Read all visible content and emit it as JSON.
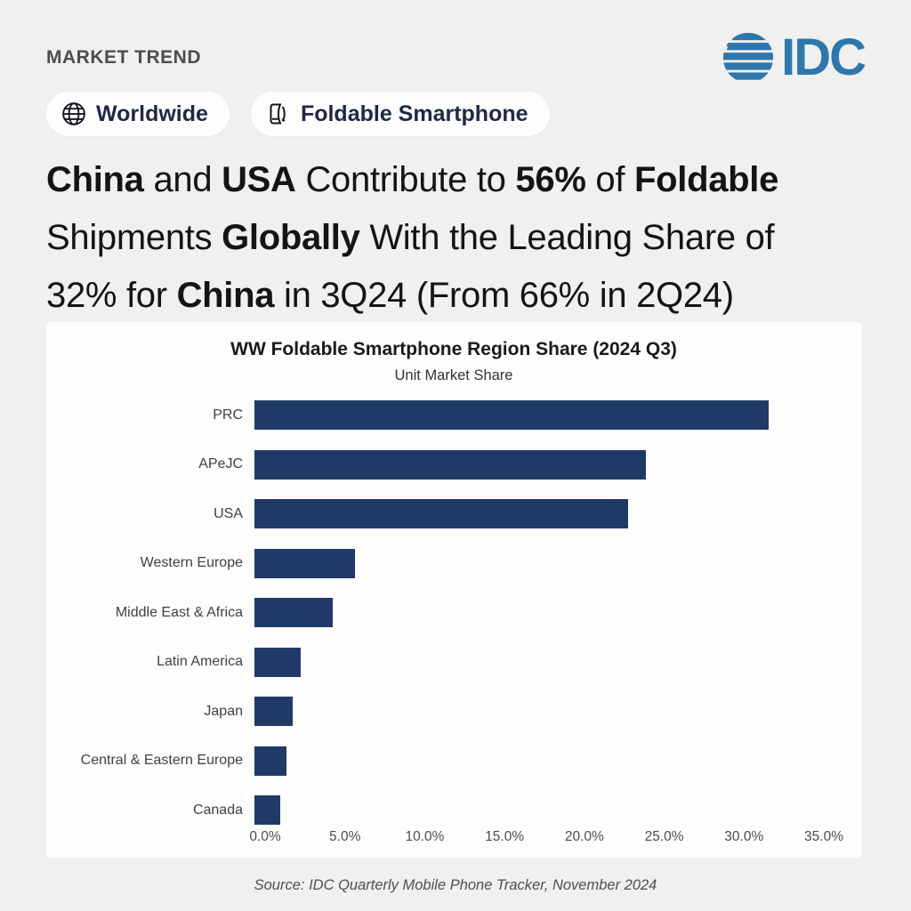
{
  "page": {
    "eyebrow": "MARKET TREND",
    "source": "Source: IDC Quarterly Mobile Phone Tracker, November 2024"
  },
  "logo": {
    "text": "IDC",
    "color": "#2d77ad"
  },
  "badges": [
    {
      "icon": "globe-icon",
      "label": "Worldwide"
    },
    {
      "icon": "foldable-phone-icon",
      "label": "Foldable Smartphone"
    }
  ],
  "headline": {
    "lines": [
      [
        {
          "text": "China",
          "bold": true
        },
        {
          "text": " and ",
          "bold": false
        },
        {
          "text": "USA",
          "bold": true
        },
        {
          "text": " Contribute to ",
          "bold": false
        },
        {
          "text": "56%",
          "bold": true
        },
        {
          "text": " of ",
          "bold": false
        },
        {
          "text": "Foldable",
          "bold": true
        }
      ],
      [
        {
          "text": "Shipments ",
          "bold": false
        },
        {
          "text": "Globally",
          "bold": true
        },
        {
          "text": " With the Leading Share of",
          "bold": false
        }
      ],
      [
        {
          "text": "32% for ",
          "bold": false
        },
        {
          "text": "China",
          "bold": true
        },
        {
          "text": " in 3Q24 (From 66% in 2Q24)",
          "bold": false
        }
      ]
    ]
  },
  "chart_data": {
    "type": "bar",
    "orientation": "horizontal",
    "title": "WW Foldable Smartphone Region Share (2024 Q3)",
    "subtitle": "Unit Market Share",
    "categories": [
      "PRC",
      "APeJC",
      "USA",
      "Western Europe",
      "Middle East & Africa",
      "Latin America",
      "Japan",
      "Central & Eastern Europe",
      "Canada"
    ],
    "values": [
      32.2,
      24.5,
      23.4,
      6.3,
      4.9,
      2.9,
      2.4,
      2.0,
      1.6
    ],
    "unit": "%",
    "xlim": [
      0,
      35
    ],
    "x_ticks": [
      "0.0%",
      "5.0%",
      "10.0%",
      "15.0%",
      "20.0%",
      "25.0%",
      "30.0%",
      "35.0%"
    ],
    "x_tick_values": [
      0,
      5,
      10,
      15,
      20,
      25,
      30,
      35
    ],
    "bar_color": "#1f3a66",
    "grid": false,
    "legend": false
  },
  "colors": {
    "background": "#f0f0ee",
    "card": "#fdfdfc",
    "bar": "#1f3a66",
    "idc_blue": "#2d77ad",
    "navy_text": "#1e2947",
    "headline_text": "#141414",
    "muted_text": "#4d4d4d"
  }
}
